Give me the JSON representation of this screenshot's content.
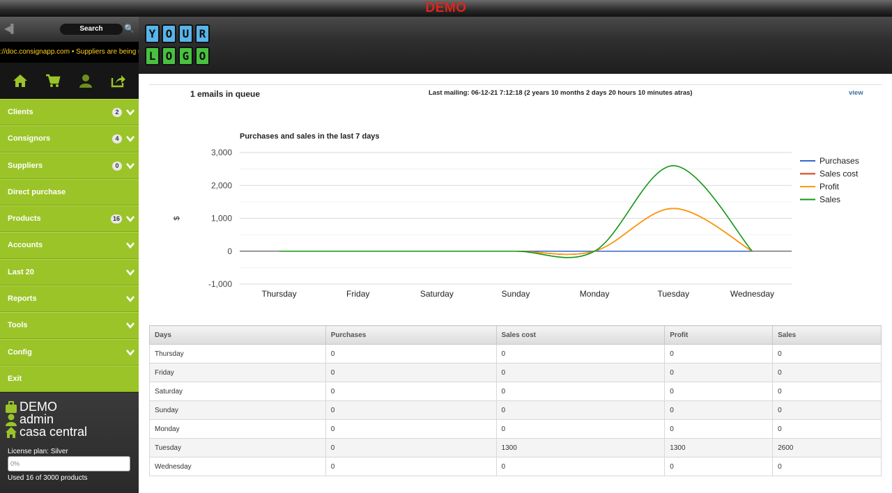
{
  "topbar": {
    "demo_label": "DEMO"
  },
  "sidebar": {
    "search_label": "Search",
    "ticker_text": "://doc.consignapp.com  •  Suppliers are being updated",
    "icons": [
      "home-icon",
      "cart-icon",
      "user-icon",
      "share-icon"
    ],
    "menu": [
      {
        "label": "Clients",
        "badge": "2",
        "chevron": true
      },
      {
        "label": "Consignors",
        "badge": "4",
        "chevron": true
      },
      {
        "label": "Suppliers",
        "badge": "0",
        "chevron": true
      },
      {
        "label": "Direct purchase",
        "badge": "",
        "chevron": false
      },
      {
        "label": "Products",
        "badge": "16",
        "chevron": true
      },
      {
        "label": "Accounts",
        "badge": "",
        "chevron": true
      },
      {
        "label": "Last 20",
        "badge": "",
        "chevron": true
      },
      {
        "label": "Reports",
        "badge": "",
        "chevron": true
      },
      {
        "label": "Tools",
        "badge": "",
        "chevron": true
      },
      {
        "label": "Config",
        "badge": "",
        "chevron": true
      },
      {
        "label": "Exit",
        "badge": "",
        "chevron": false
      }
    ],
    "user": {
      "company": "DEMO",
      "username": "admin",
      "location": "casa central",
      "license_plan": "License plan: Silver",
      "progress_label": "0%",
      "progress_value": 0,
      "usage": "Used 16 of 3000 products"
    }
  },
  "header": {
    "logo_letters": [
      "Y",
      "O",
      "U",
      "R",
      "L",
      "O",
      "G",
      "O"
    ]
  },
  "main": {
    "queue_text": "1 emails in queue",
    "last_mailing": "Last mailing: 06-12-21 7:12:18 (2 years 10 months 2 days 20 hours 10 minutes atras)",
    "view_label": "view"
  },
  "chart_data": {
    "type": "line",
    "title": "Purchases and sales in the last 7 days",
    "ylabel": "$",
    "xlabel": "",
    "categories": [
      "Thursday",
      "Friday",
      "Saturday",
      "Sunday",
      "Monday",
      "Tuesday",
      "Wednesday"
    ],
    "series": [
      {
        "name": "Purchases",
        "color": "#3366cc",
        "values": [
          0,
          0,
          0,
          0,
          0,
          0,
          0
        ]
      },
      {
        "name": "Sales cost",
        "color": "#dc3912",
        "values": [
          0,
          0,
          0,
          0,
          0,
          1300,
          0
        ]
      },
      {
        "name": "Profit",
        "color": "#ff9900",
        "values": [
          0,
          0,
          0,
          0,
          0,
          1300,
          0
        ]
      },
      {
        "name": "Sales",
        "color": "#109618",
        "values": [
          0,
          0,
          0,
          0,
          0,
          2600,
          0
        ]
      }
    ],
    "yticks": [
      3000,
      2000,
      1000,
      0,
      -1000
    ],
    "ytick_labels": [
      "3,000",
      "2,000",
      "1,000",
      "0",
      "-1,000"
    ],
    "ylim": [
      -1000,
      3000
    ],
    "grid": true,
    "legend": "right"
  },
  "table": {
    "headers": [
      "Days",
      "Purchases",
      "Sales cost",
      "Profit",
      "Sales"
    ],
    "rows": [
      [
        "Thursday",
        "0",
        "0",
        "0",
        "0"
      ],
      [
        "Friday",
        "0",
        "0",
        "0",
        "0"
      ],
      [
        "Saturday",
        "0",
        "0",
        "0",
        "0"
      ],
      [
        "Sunday",
        "0",
        "0",
        "0",
        "0"
      ],
      [
        "Monday",
        "0",
        "0",
        "0",
        "0"
      ],
      [
        "Tuesday",
        "0",
        "1300",
        "1300",
        "2600"
      ],
      [
        "Wednesday",
        "0",
        "0",
        "0",
        "0"
      ]
    ]
  }
}
